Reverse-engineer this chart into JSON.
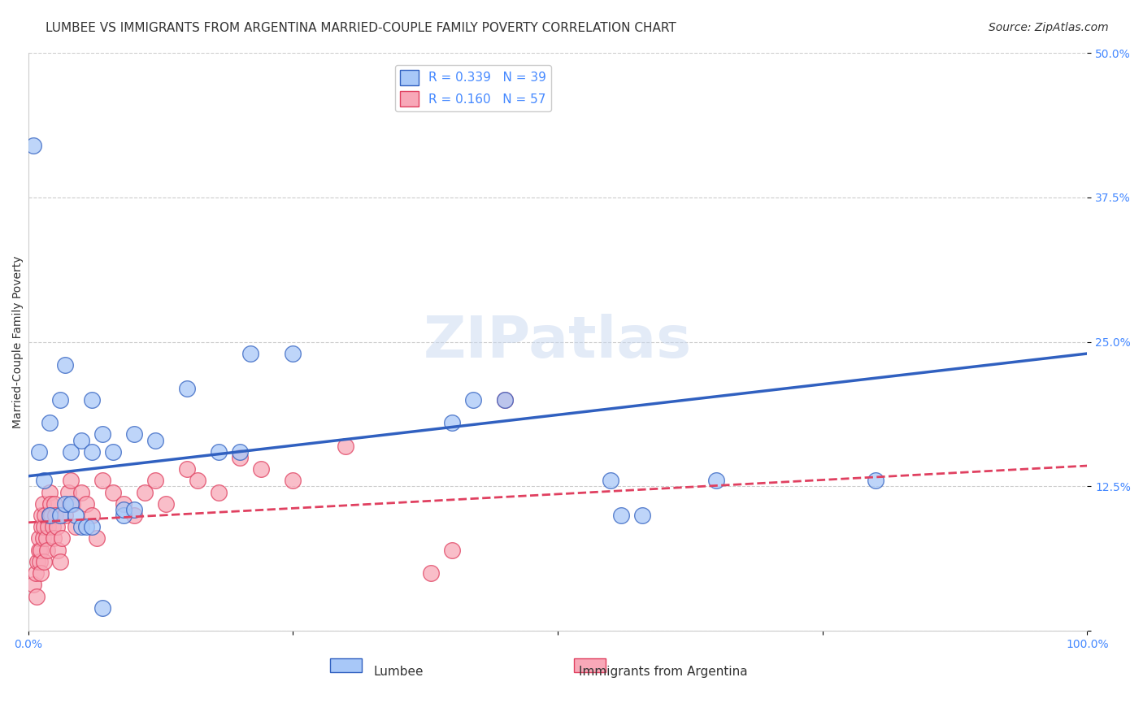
{
  "title": "LUMBEE VS IMMIGRANTS FROM ARGENTINA MARRIED-COUPLE FAMILY POVERTY CORRELATION CHART",
  "source": "Source: ZipAtlas.com",
  "xlabel_lumbee": "Lumbee",
  "xlabel_argentina": "Immigrants from Argentina",
  "ylabel": "Married-Couple Family Poverty",
  "lumbee_R": 0.339,
  "lumbee_N": 39,
  "argentina_R": 0.16,
  "argentina_N": 57,
  "xlim": [
    0,
    1.0
  ],
  "ylim": [
    0,
    0.5
  ],
  "xticks": [
    0.0,
    0.25,
    0.5,
    0.75,
    1.0
  ],
  "xtick_labels": [
    "0.0%",
    "",
    "",
    "",
    "100.0%"
  ],
  "yticks": [
    0.0,
    0.125,
    0.25,
    0.375,
    0.5
  ],
  "ytick_labels": [
    "",
    "12.5%",
    "25.0%",
    "37.5%",
    "50.0%"
  ],
  "lumbee_color": "#a8c8f8",
  "lumbee_line_color": "#3060c0",
  "argentina_color": "#f8a8b8",
  "argentina_line_color": "#e04060",
  "argentina_line_style": "dashed",
  "watermark": "ZIPatlas",
  "lumbee_x": [
    0.02,
    0.03,
    0.035,
    0.04,
    0.05,
    0.06,
    0.06,
    0.07,
    0.08,
    0.09,
    0.09,
    0.1,
    0.1,
    0.12,
    0.15,
    0.18,
    0.2,
    0.21,
    0.25,
    0.4,
    0.42,
    0.45,
    0.55,
    0.56,
    0.58,
    0.65,
    0.8,
    0.005,
    0.01,
    0.015,
    0.02,
    0.03,
    0.035,
    0.04,
    0.045,
    0.05,
    0.055,
    0.06,
    0.07
  ],
  "lumbee_y": [
    0.18,
    0.2,
    0.23,
    0.155,
    0.165,
    0.2,
    0.155,
    0.17,
    0.155,
    0.1,
    0.105,
    0.105,
    0.17,
    0.165,
    0.21,
    0.155,
    0.155,
    0.24,
    0.24,
    0.18,
    0.2,
    0.2,
    0.13,
    0.1,
    0.1,
    0.13,
    0.13,
    0.42,
    0.155,
    0.13,
    0.1,
    0.1,
    0.11,
    0.11,
    0.1,
    0.09,
    0.09,
    0.09,
    0.02
  ],
  "argentina_x": [
    0.005,
    0.007,
    0.008,
    0.009,
    0.01,
    0.01,
    0.011,
    0.012,
    0.012,
    0.013,
    0.013,
    0.014,
    0.014,
    0.015,
    0.015,
    0.016,
    0.017,
    0.018,
    0.019,
    0.02,
    0.02,
    0.021,
    0.022,
    0.023,
    0.024,
    0.025,
    0.026,
    0.027,
    0.028,
    0.03,
    0.032,
    0.035,
    0.038,
    0.04,
    0.042,
    0.045,
    0.05,
    0.055,
    0.06,
    0.065,
    0.07,
    0.08,
    0.09,
    0.1,
    0.11,
    0.12,
    0.13,
    0.15,
    0.16,
    0.18,
    0.2,
    0.22,
    0.25,
    0.3,
    0.38,
    0.4,
    0.45
  ],
  "argentina_y": [
    0.04,
    0.05,
    0.03,
    0.06,
    0.07,
    0.08,
    0.06,
    0.05,
    0.07,
    0.09,
    0.1,
    0.08,
    0.11,
    0.09,
    0.06,
    0.1,
    0.08,
    0.07,
    0.09,
    0.1,
    0.12,
    0.11,
    0.1,
    0.09,
    0.08,
    0.11,
    0.1,
    0.09,
    0.07,
    0.06,
    0.08,
    0.1,
    0.12,
    0.13,
    0.11,
    0.09,
    0.12,
    0.11,
    0.1,
    0.08,
    0.13,
    0.12,
    0.11,
    0.1,
    0.12,
    0.13,
    0.11,
    0.14,
    0.13,
    0.12,
    0.15,
    0.14,
    0.13,
    0.16,
    0.05,
    0.07,
    0.2
  ],
  "title_fontsize": 11,
  "axis_label_fontsize": 10,
  "tick_fontsize": 10,
  "legend_fontsize": 11,
  "source_fontsize": 10
}
